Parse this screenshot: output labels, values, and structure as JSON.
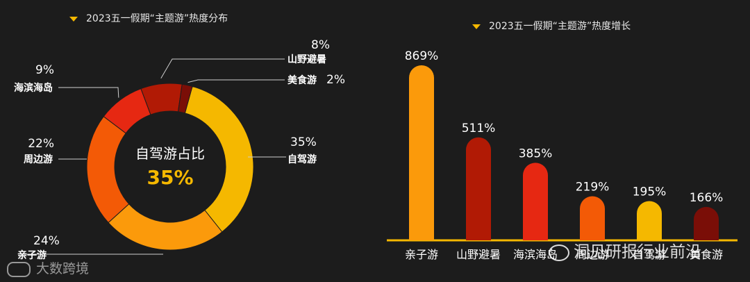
{
  "left_title": "2023五一假期“主题游”热度分布",
  "right_title": "2023五一假期“主题游”热度增长",
  "donut_center": {
    "label": "自驾游占比",
    "value": "35%"
  },
  "colors": {
    "accent": "#f5b800",
    "background": "#1c1c1c",
    "baseline": "#f5b800"
  },
  "watermark": "洞见研报行业前沿",
  "logo_text": "大数跨境",
  "chart_data": [
    {
      "type": "pie",
      "title": "2023五一假期“主题游”热度分布",
      "slices": [
        {
          "label": "自驾游",
          "value": 35,
          "pct_label": "35%",
          "color": "#f5b800"
        },
        {
          "label": "亲子游",
          "value": 24,
          "pct_label": "24%",
          "color": "#fb9a0b"
        },
        {
          "label": "周边游",
          "value": 22,
          "pct_label": "22%",
          "color": "#f35a06"
        },
        {
          "label": "海滨海岛",
          "value": 9,
          "pct_label": "9%",
          "color": "#e62812"
        },
        {
          "label": "山野避暑",
          "value": 8,
          "pct_label": "8%",
          "color": "#b11a05"
        },
        {
          "label": "美食游",
          "value": 2,
          "pct_label": "2%",
          "color": "#7a0e07"
        }
      ]
    },
    {
      "type": "bar",
      "title": "2023五一假期“主题游”热度增长",
      "categories": [
        "亲子游",
        "山野避暑",
        "海滨海岛",
        "周边游",
        "自驾游",
        "美食游"
      ],
      "values": [
        869,
        511,
        385,
        219,
        195,
        166
      ],
      "value_labels": [
        "869%",
        "511%",
        "385%",
        "219%",
        "195%",
        "166%"
      ],
      "colors": [
        "#fb9a0b",
        "#b11a05",
        "#e62812",
        "#f35a06",
        "#f5b800",
        "#7a0e07"
      ],
      "ylim": [
        0,
        1000
      ]
    }
  ]
}
